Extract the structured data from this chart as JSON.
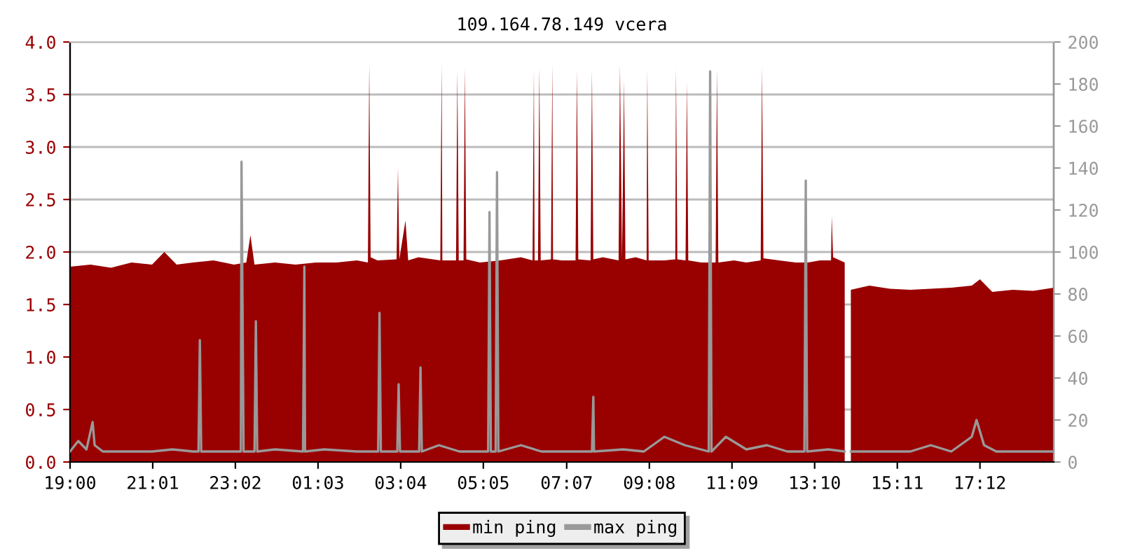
{
  "chart_data": {
    "type": "area",
    "title": "109.164.78.149 vcera",
    "xlim": [
      "2000-01-01T19:00",
      "2000-01-02T19:00"
    ],
    "xticks": [
      {
        "value": "2000-01-01T19:00",
        "label": "19:00"
      },
      {
        "value": "2000-01-01T21:01",
        "label": "21:01"
      },
      {
        "value": "2000-01-01T23:02",
        "label": "23:02"
      },
      {
        "value": "2000-01-02T01:03",
        "label": "01:03"
      },
      {
        "value": "2000-01-02T03:04",
        "label": "03:04"
      },
      {
        "value": "2000-01-02T05:05",
        "label": "05:05"
      },
      {
        "value": "2000-01-02T07:07",
        "label": "07:07"
      },
      {
        "value": "2000-01-02T09:08",
        "label": "09:08"
      },
      {
        "value": "2000-01-02T11:09",
        "label": "11:09"
      },
      {
        "value": "2000-01-02T13:10",
        "label": "13:10"
      },
      {
        "value": "2000-01-02T15:11",
        "label": "15:11"
      },
      {
        "value": "2000-01-02T17:12",
        "label": "17:12"
      }
    ],
    "ylim": [
      0,
      4
    ],
    "yticks": [
      {
        "value": 0,
        "label": "0.0"
      },
      0.5,
      {
        "value": 1,
        "label": "1.0"
      },
      1.5,
      {
        "value": 2,
        "label": "2.0"
      },
      2.5,
      {
        "value": 3,
        "label": "3.0"
      },
      3.5,
      {
        "value": 4,
        "label": "4.0"
      }
    ],
    "y2lim": [
      0,
      200
    ],
    "y2ticks": [
      0,
      20,
      40,
      60,
      80,
      100,
      120,
      140,
      160,
      180,
      200
    ],
    "grid": "y",
    "legend": "bottom",
    "marker": "none",
    "series": [
      {
        "name": "min ping",
        "color": "#990000",
        "axis": "y",
        "x": [
          "2000-01-01T19:00",
          "2000-01-01T19:30",
          "2000-01-01T20:00",
          "2000-01-01T20:30",
          "2000-01-01T21:00",
          "2000-01-01T21:18",
          "2000-01-01T21:36",
          "2000-01-01T22:00",
          "2000-01-01T22:30",
          "2000-01-01T23:00",
          "2000-01-01T23:18",
          "2000-01-01T23:24",
          "2000-01-01T23:30",
          "2000-01-02T00:00",
          "2000-01-02T00:30",
          "2000-01-02T01:00",
          "2000-01-02T01:30",
          "2000-01-02T02:00",
          "2000-01-02T02:16",
          "2000-01-02T02:18",
          "2000-01-02T02:20",
          "2000-01-02T02:30",
          "2000-01-02T02:58",
          "2000-01-02T03:00",
          "2000-01-02T03:02",
          "2000-01-02T03:11",
          "2000-01-02T03:15",
          "2000-01-02T03:30",
          "2000-01-02T04:02",
          "2000-01-02T04:04",
          "2000-01-02T04:05",
          "2000-01-02T04:25",
          "2000-01-02T04:27",
          "2000-01-02T04:29",
          "2000-01-02T04:36",
          "2000-01-02T04:38",
          "2000-01-02T04:40",
          "2000-01-02T05:00",
          "2000-01-02T05:30",
          "2000-01-02T06:00",
          "2000-01-02T06:17",
          "2000-01-02T06:19",
          "2000-01-02T06:20",
          "2000-01-02T06:25",
          "2000-01-02T06:27",
          "2000-01-02T06:29",
          "2000-01-02T06:44",
          "2000-01-02T06:46",
          "2000-01-02T06:47",
          "2000-01-02T07:00",
          "2000-01-02T07:20",
          "2000-01-02T07:22",
          "2000-01-02T07:24",
          "2000-01-02T07:42",
          "2000-01-02T07:44",
          "2000-01-02T07:46",
          "2000-01-02T08:00",
          "2000-01-02T08:23",
          "2000-01-02T08:25",
          "2000-01-02T08:28",
          "2000-01-02T08:31",
          "2000-01-02T08:33",
          "2000-01-02T08:48",
          "2000-01-02T09:04",
          "2000-01-02T09:05",
          "2000-01-02T09:07",
          "2000-01-02T09:30",
          "2000-01-02T09:46",
          "2000-01-02T09:47",
          "2000-01-02T09:49",
          "2000-01-02T10:01",
          "2000-01-02T10:03",
          "2000-01-02T10:05",
          "2000-01-02T10:24",
          "2000-01-02T10:45",
          "2000-01-02T10:47",
          "2000-01-02T10:49",
          "2000-01-02T11:12",
          "2000-01-02T11:30",
          "2000-01-02T11:51",
          "2000-01-02T11:53",
          "2000-01-02T11:55",
          "2000-01-02T12:18",
          "2000-01-02T12:42",
          "2000-01-02T13:00",
          "2000-01-02T13:18",
          "2000-01-02T13:34",
          "2000-01-02T13:35",
          "2000-01-02T13:37",
          "2000-01-02T13:54",
          "2000-01-02T13:58",
          "2000-01-02T14:03",
          "2000-01-02T14:30",
          "2000-01-02T15:00",
          "2000-01-02T15:30",
          "2000-01-02T16:00",
          "2000-01-02T16:30",
          "2000-01-02T17:00",
          "2000-01-02T17:12",
          "2000-01-02T17:30",
          "2000-01-02T18:00",
          "2000-01-02T18:30",
          "2000-01-02T19:00"
        ],
        "values": [
          1.86,
          1.88,
          1.85,
          1.9,
          1.88,
          2.0,
          1.88,
          1.9,
          1.92,
          1.88,
          1.9,
          2.16,
          1.88,
          1.9,
          1.88,
          1.9,
          1.9,
          1.92,
          1.9,
          3.79,
          1.95,
          1.92,
          1.93,
          2.8,
          1.93,
          2.3,
          1.92,
          1.95,
          1.92,
          3.79,
          1.92,
          1.92,
          3.72,
          1.92,
          1.92,
          3.75,
          1.93,
          1.9,
          1.92,
          1.95,
          1.92,
          3.73,
          1.92,
          1.92,
          3.75,
          1.92,
          1.93,
          3.79,
          1.93,
          1.92,
          1.92,
          3.73,
          1.93,
          1.92,
          3.73,
          1.93,
          1.95,
          1.92,
          3.78,
          1.93,
          3.63,
          1.93,
          1.95,
          1.92,
          3.74,
          1.92,
          1.92,
          1.93,
          3.75,
          1.93,
          1.92,
          3.62,
          1.92,
          1.9,
          1.9,
          3.74,
          1.9,
          1.92,
          1.9,
          1.92,
          3.76,
          1.94,
          1.92,
          1.9,
          1.9,
          1.92,
          1.92,
          2.34,
          1.95,
          1.9,
          null,
          1.64,
          1.68,
          1.65,
          1.64,
          1.65,
          1.66,
          1.68,
          1.74,
          1.62,
          1.64,
          1.63,
          1.66
        ]
      },
      {
        "name": "max ping",
        "color": "#999999",
        "type": "line",
        "axis": "y2",
        "x": [
          "2000-01-01T19:00",
          "2000-01-01T19:12",
          "2000-01-01T19:24",
          "2000-01-01T19:33",
          "2000-01-01T19:36",
          "2000-01-01T19:48",
          "2000-01-01T20:30",
          "2000-01-01T21:00",
          "2000-01-01T21:30",
          "2000-01-01T22:00",
          "2000-01-01T22:08",
          "2000-01-01T22:10",
          "2000-01-01T22:12",
          "2000-01-01T22:48",
          "2000-01-01T23:10",
          "2000-01-01T23:11",
          "2000-01-01T23:14",
          "2000-01-01T23:30",
          "2000-01-01T23:32",
          "2000-01-01T23:34",
          "2000-01-02T00:00",
          "2000-01-02T00:41",
          "2000-01-02T00:43",
          "2000-01-02T00:44",
          "2000-01-02T01:12",
          "2000-01-02T02:00",
          "2000-01-02T02:31",
          "2000-01-02T02:33",
          "2000-01-02T02:35",
          "2000-01-02T02:59",
          "2000-01-02T03:01",
          "2000-01-02T03:03",
          "2000-01-02T03:31",
          "2000-01-02T03:33",
          "2000-01-02T03:35",
          "2000-01-02T04:00",
          "2000-01-02T04:30",
          "2000-01-02T05:12",
          "2000-01-02T05:14",
          "2000-01-02T05:16",
          "2000-01-02T05:23",
          "2000-01-02T05:25",
          "2000-01-02T05:27",
          "2000-01-02T06:00",
          "2000-01-02T06:30",
          "2000-01-02T07:00",
          "2000-01-02T07:44",
          "2000-01-02T07:46",
          "2000-01-02T07:47",
          "2000-01-02T08:30",
          "2000-01-02T09:00",
          "2000-01-02T09:30",
          "2000-01-02T10:00",
          "2000-01-02T10:35",
          "2000-01-02T10:37",
          "2000-01-02T10:39",
          "2000-01-02T11:00",
          "2000-01-02T11:30",
          "2000-01-02T12:00",
          "2000-01-02T12:30",
          "2000-01-02T12:55",
          "2000-01-02T12:57",
          "2000-01-02T12:59",
          "2000-01-02T13:30",
          "2000-01-02T13:54",
          "2000-01-02T13:58",
          "2000-01-02T14:03",
          "2000-01-02T14:30",
          "2000-01-02T15:00",
          "2000-01-02T15:30",
          "2000-01-02T16:00",
          "2000-01-02T16:30",
          "2000-01-02T17:00",
          "2000-01-02T17:07",
          "2000-01-02T17:18",
          "2000-01-02T17:36",
          "2000-01-02T18:00",
          "2000-01-02T18:30",
          "2000-01-02T19:00"
        ],
        "values": [
          5,
          10,
          6,
          19,
          8,
          5,
          5,
          5,
          6,
          5,
          5,
          58,
          5,
          5,
          5,
          143,
          5,
          5,
          67,
          5,
          6,
          5,
          93,
          5,
          6,
          5,
          5,
          71,
          5,
          5,
          37,
          5,
          5,
          45,
          5,
          8,
          5,
          5,
          119,
          5,
          5,
          138,
          5,
          8,
          5,
          5,
          5,
          31,
          5,
          6,
          5,
          12,
          8,
          5,
          186,
          5,
          12,
          6,
          8,
          5,
          5,
          134,
          5,
          6,
          5,
          null,
          5,
          5,
          5,
          5,
          8,
          5,
          12,
          20,
          8,
          5,
          5,
          5,
          5
        ]
      }
    ]
  }
}
